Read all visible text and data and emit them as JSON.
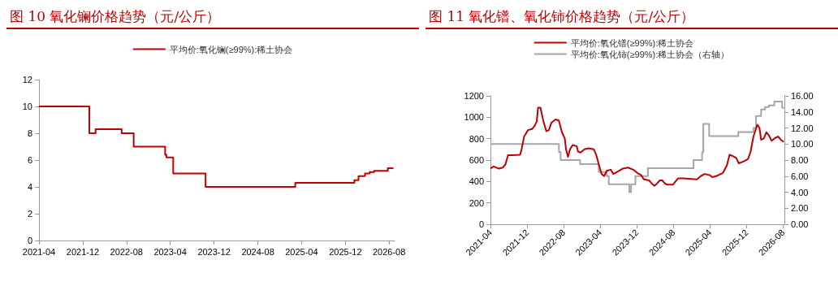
{
  "chart_data": [
    {
      "type": "step",
      "title": "图 10 氧化镧价格趋势（元/公斤）",
      "x": [
        "2021-04-01",
        "2022-01-06",
        "2022-02-10",
        "2022-07-05",
        "2022-09-10",
        "2023-03-04",
        "2023-03-11",
        "2023-04-18",
        "2023-10-15",
        "2025-02-25",
        "2026-01-20",
        "2026-02-12",
        "2026-03-20",
        "2026-04-15",
        "2026-05-10",
        "2026-07-25",
        "2026-08-25"
      ],
      "series": [
        {
          "name": "平均价:氧化镧(≥99%):稀土协会",
          "color": "#c00000",
          "values": [
            10,
            8,
            8.3,
            8,
            7,
            6.4,
            6.2,
            5,
            4,
            4.3,
            4.5,
            4.8,
            5,
            5.1,
            5.2,
            5.4,
            5.4
          ]
        }
      ],
      "xlim": [
        "2021-04-01",
        "2026-09-01"
      ],
      "xticks": [
        "2021-04",
        "2021-12",
        "2022-08",
        "2023-04",
        "2023-12",
        "2024-08",
        "2025-04",
        "2025-12",
        "2026-08"
      ],
      "ylim": [
        0,
        12
      ],
      "yticks": [
        0,
        2,
        4,
        6,
        8,
        10,
        12
      ],
      "grid": false,
      "legend": "top"
    },
    {
      "type": "line",
      "title": "图 11 氧化镨、氧化铈价格趋势（元/公斤）",
      "series": [
        {
          "name": "平均价:氧化镨(≥99%):稀土协会",
          "color": "#c00000",
          "x": [
            "2021-04-01",
            "2021-04-22",
            "2021-05-27",
            "2021-06-22",
            "2021-07-10",
            "2021-07-27",
            "2021-08-23",
            "2021-10-15",
            "2021-10-24",
            "2021-11-11",
            "2021-12-07",
            "2022-01-03",
            "2022-01-20",
            "2022-02-03",
            "2022-02-12",
            "2022-02-28",
            "2022-03-20",
            "2022-04-08",
            "2022-04-25",
            "2022-05-12",
            "2022-06-08",
            "2022-06-30",
            "2022-07-21",
            "2022-08-09",
            "2022-08-17",
            "2022-08-30",
            "2022-09-13",
            "2022-09-30",
            "2022-10-27",
            "2022-11-05",
            "2022-11-22",
            "2022-12-18",
            "2023-01-14",
            "2023-02-18",
            "2023-03-06",
            "2023-03-23",
            "2023-04-11",
            "2023-04-28",
            "2023-05-15",
            "2023-06-11",
            "2023-06-28",
            "2023-07-25",
            "2023-08-29",
            "2023-10-04",
            "2023-11-08",
            "2023-12-04",
            "2023-12-30",
            "2024-01-17",
            "2024-02-22",
            "2024-03-10",
            "2024-03-27",
            "2024-04-14",
            "2024-05-01",
            "2024-05-19",
            "2024-06-06",
            "2024-06-23",
            "2024-07-28",
            "2024-08-15",
            "2024-09-02",
            "2024-10-07",
            "2025-01-04",
            "2025-01-30",
            "2025-02-25",
            "2025-03-30",
            "2025-04-17",
            "2025-05-13",
            "2025-06-27",
            "2025-07-23",
            "2025-08-10",
            "2025-08-27",
            "2025-09-23",
            "2025-10-10",
            "2025-11-15",
            "2025-12-11",
            "2025-12-28",
            "2026-01-16",
            "2026-02-11",
            "2026-02-25",
            "2026-03-08",
            "2026-03-25",
            "2026-04-12",
            "2026-04-29",
            "2026-05-17",
            "2026-06-13",
            "2026-06-30",
            "2026-07-17",
            "2026-08-05"
          ],
          "values": [
            520,
            540,
            520,
            530,
            560,
            645,
            645,
            650,
            690,
            820,
            880,
            890,
            920,
            960,
            1090,
            1090,
            960,
            870,
            880,
            950,
            980,
            970,
            860,
            800,
            700,
            630,
            700,
            740,
            730,
            680,
            670,
            700,
            710,
            700,
            650,
            560,
            470,
            450,
            500,
            510,
            470,
            490,
            520,
            530,
            510,
            480,
            460,
            420,
            410,
            380,
            360,
            380,
            410,
            410,
            380,
            370,
            370,
            400,
            430,
            430,
            420,
            450,
            470,
            460,
            440,
            450,
            480,
            550,
            650,
            640,
            620,
            570,
            590,
            610,
            680,
            820,
            930,
            900,
            790,
            800,
            860,
            830,
            780,
            810,
            820,
            790,
            770
          ]
        },
        {
          "name": "平均价:氧化铈(≥99%):稀土协会（右轴）",
          "color": "#a6a6a6",
          "axis": "y2",
          "type": "step",
          "x": [
            "2021-04-01",
            "2022-07-01",
            "2022-07-12",
            "2022-11-19",
            "2023-03-23",
            "2023-05-15",
            "2023-05-29",
            "2023-10-12",
            "2023-10-24",
            "2023-11-22",
            "2024-02-13",
            "2024-12-13",
            "2025-02-08",
            "2025-02-16",
            "2025-03-27",
            "2025-10-07",
            "2026-01-16",
            "2026-02-02",
            "2026-03-08",
            "2026-04-03",
            "2026-04-29",
            "2026-06-04",
            "2026-07-26",
            "2026-08-08"
          ],
          "values": [
            10,
            9,
            8,
            7.5,
            6.5,
            6,
            5,
            4,
            5,
            6,
            7,
            8,
            9,
            12.5,
            11,
            11.5,
            12,
            13.5,
            14.3,
            14.6,
            14.8,
            15.3,
            14.5,
            14.5
          ]
        }
      ],
      "xlim": [
        "2021-04-01",
        "2026-08-10"
      ],
      "xticks": [
        "2021-04",
        "2021-12",
        "2022-08",
        "2023-04",
        "2023-12",
        "2024-08",
        "2025-04",
        "2025-12",
        "2026-08"
      ],
      "ylim": [
        0,
        1200
      ],
      "yticks": [
        0,
        200,
        400,
        600,
        800,
        1000,
        1200
      ],
      "y2lim": [
        0,
        16
      ],
      "y2ticks": [
        {
          "value": 0,
          "label": "0.00"
        },
        {
          "value": 2,
          "label": "2.00"
        },
        {
          "value": 4,
          "label": "4.00"
        },
        {
          "value": 6,
          "label": "6.00"
        },
        {
          "value": 8,
          "label": "8.00"
        },
        {
          "value": 10,
          "label": "10.00"
        },
        {
          "value": 12,
          "label": "12.00"
        },
        {
          "value": 14,
          "label": "14.00"
        },
        {
          "value": 16,
          "label": "16.00"
        }
      ],
      "grid": false,
      "legend": "top"
    }
  ]
}
